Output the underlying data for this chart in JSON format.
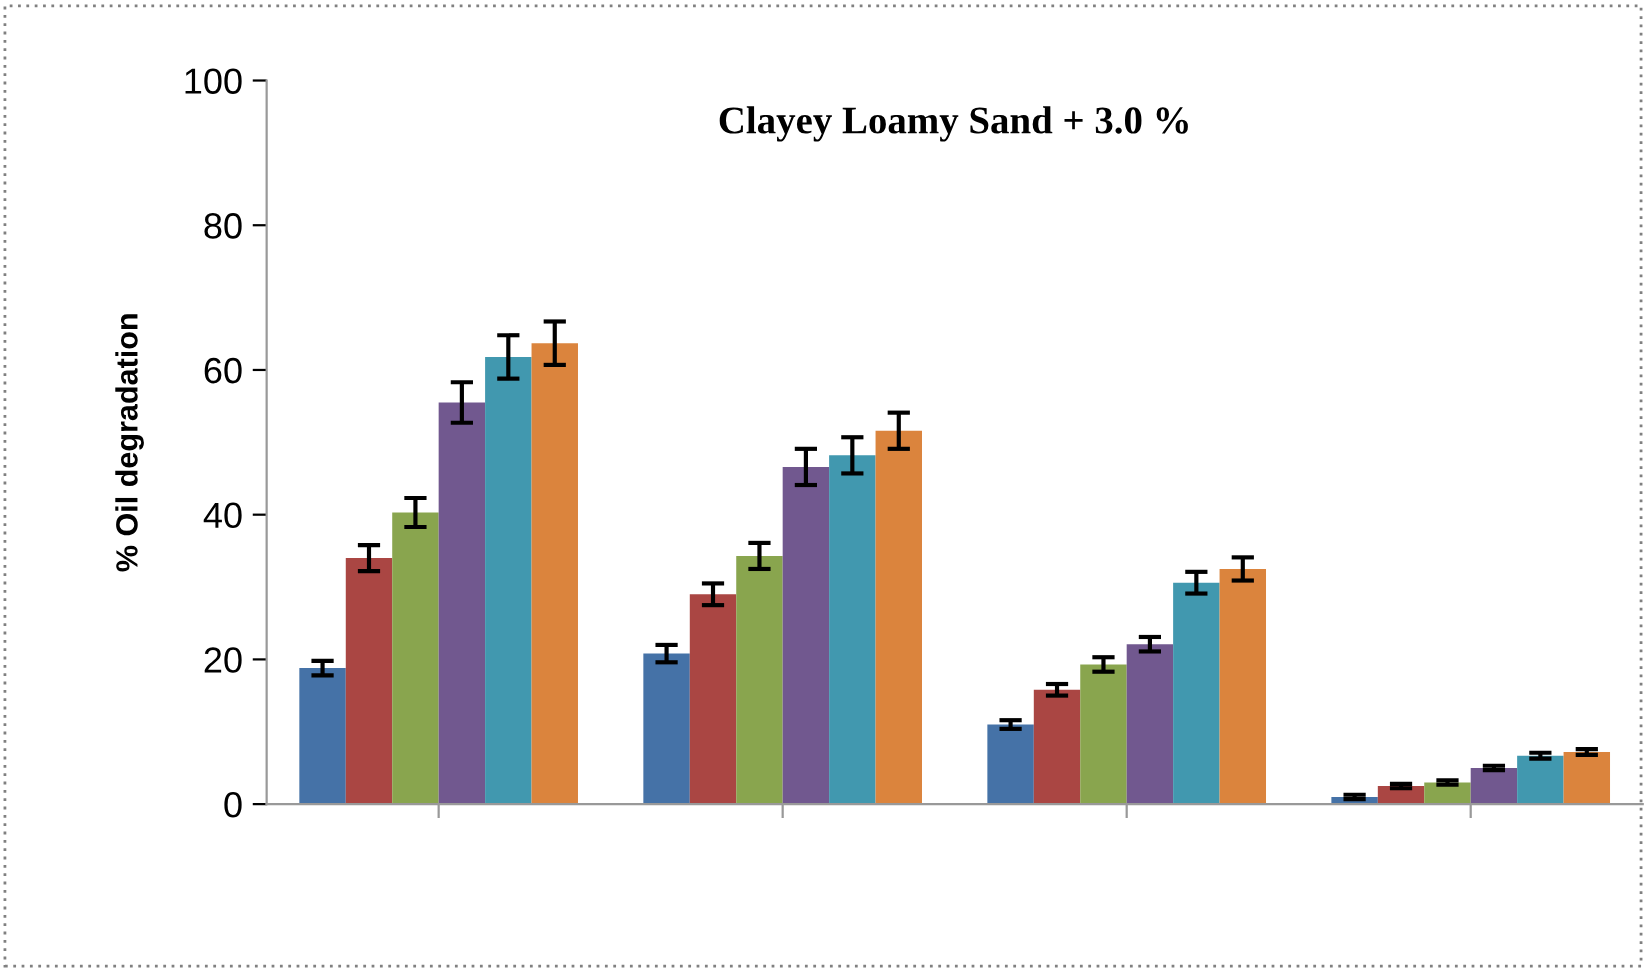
{
  "chart_data": {
    "type": "bar",
    "title": "Clayey Loamy Sand + 3.0 %",
    "ylabel": "% Oil degradation",
    "categories": [
      null,
      null,
      null,
      null
    ],
    "series": [
      {
        "color": "#4572a7",
        "values": [
          18.8,
          20.8,
          11.0,
          1.0
        ],
        "errors": [
          1.0,
          1.2,
          0.6,
          0.3
        ]
      },
      {
        "color": "#aa4643",
        "values": [
          34.0,
          29.0,
          15.8,
          2.5
        ],
        "errors": [
          1.8,
          1.5,
          0.8,
          0.3
        ]
      },
      {
        "color": "#89a54e",
        "values": [
          40.3,
          34.3,
          19.3,
          3.0
        ],
        "errors": [
          2.0,
          1.8,
          1.0,
          0.3
        ]
      },
      {
        "color": "#71588f",
        "values": [
          55.5,
          46.6,
          22.1,
          5.0
        ],
        "errors": [
          2.8,
          2.5,
          1.0,
          0.3
        ]
      },
      {
        "color": "#4198af",
        "values": [
          61.8,
          48.2,
          30.6,
          6.7
        ],
        "errors": [
          3.0,
          2.5,
          1.5,
          0.4
        ]
      },
      {
        "color": "#db843d",
        "values": [
          63.7,
          51.6,
          32.5,
          7.2
        ],
        "errors": [
          3.0,
          2.5,
          1.6,
          0.4
        ]
      }
    ],
    "ylim": [
      0,
      100
    ],
    "yticks": [
      0,
      20,
      40,
      60,
      80,
      100
    ],
    "grid": false,
    "legend": false
  }
}
